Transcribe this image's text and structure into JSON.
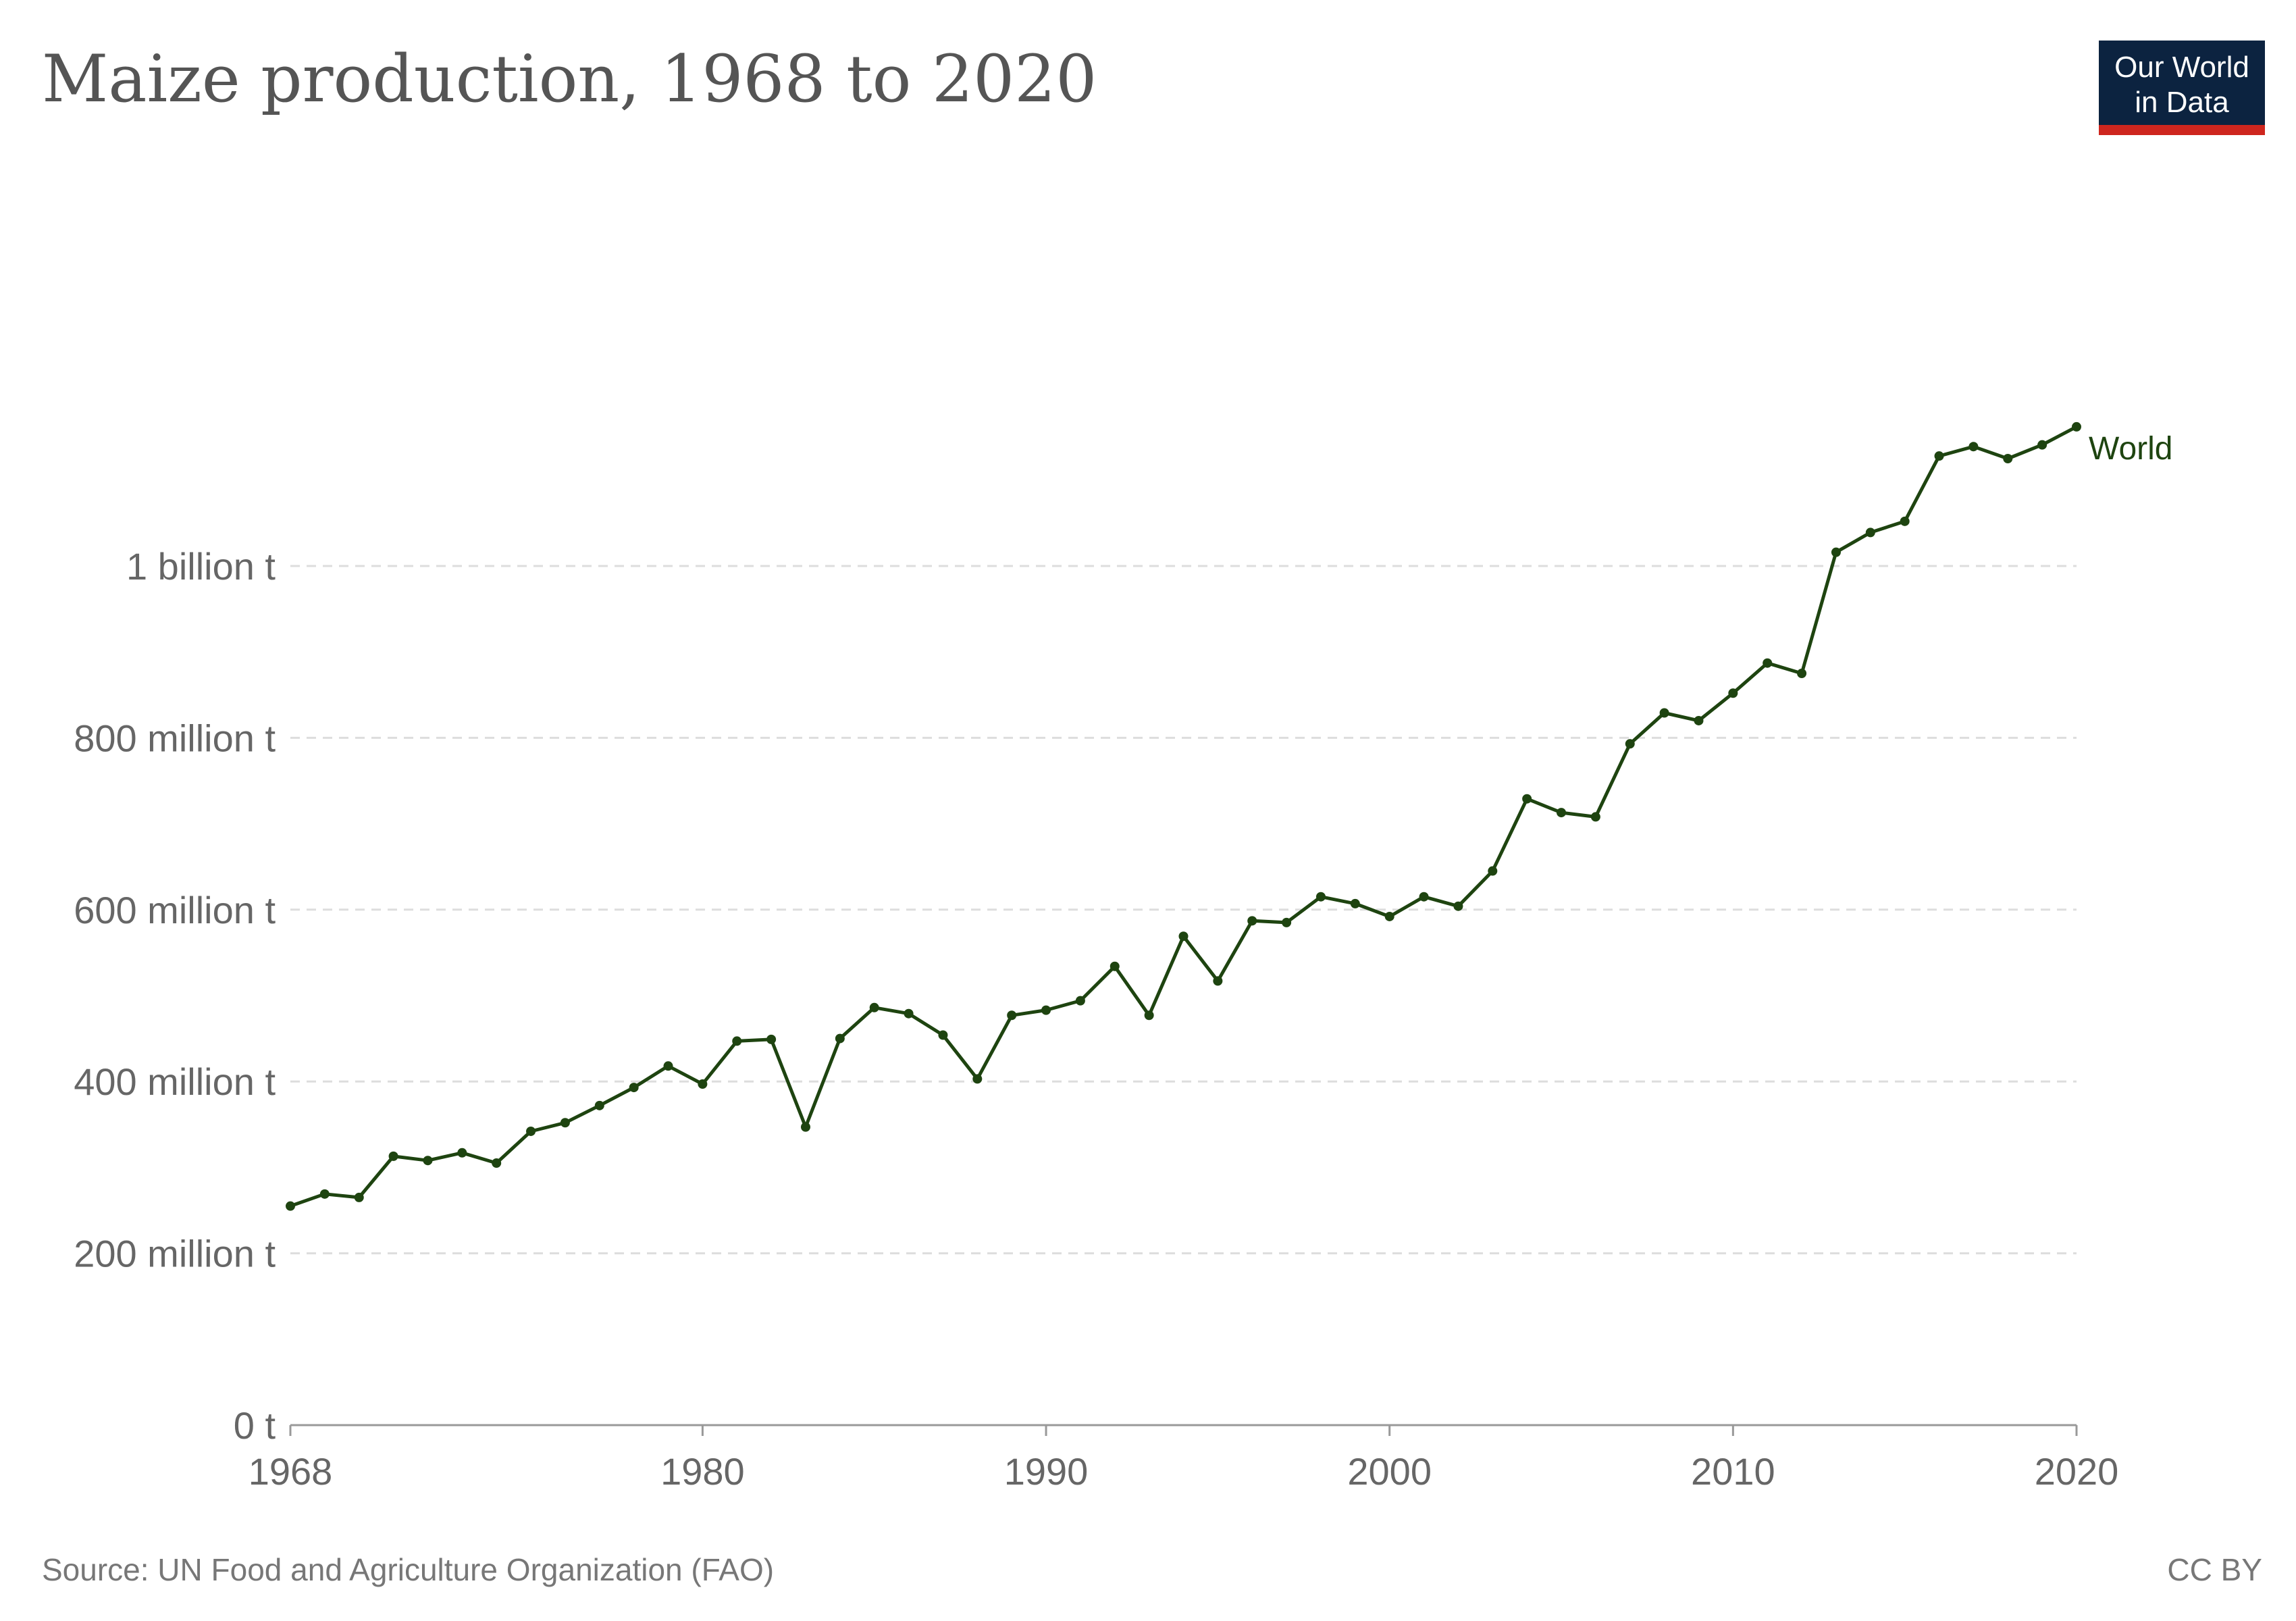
{
  "logo": {
    "line1": "Our World",
    "line2": "in Data",
    "bg": "#0c2340",
    "accent": "#ce261e"
  },
  "footer": {
    "source": "Source: UN Food and Agriculture Organization (FAO)",
    "license": "CC BY"
  },
  "chart_data": {
    "type": "line",
    "title": "Maize production, 1968 to 2020",
    "xlabel": "",
    "ylabel": "",
    "xlim": [
      1968,
      2020
    ],
    "ylim": [
      0,
      1200000000
    ],
    "x_ticks": [
      1968,
      1980,
      1990,
      2000,
      2010,
      2020
    ],
    "y_ticks": [
      {
        "value": 0,
        "label": "0 t"
      },
      {
        "value": 200000000,
        "label": "200 million t"
      },
      {
        "value": 400000000,
        "label": "400 million t"
      },
      {
        "value": 600000000,
        "label": "600 million t"
      },
      {
        "value": 800000000,
        "label": "800 million t"
      },
      {
        "value": 1000000000,
        "label": "1 billion t"
      }
    ],
    "grid": true,
    "line_color": "#1e4410",
    "series": [
      {
        "name": "World",
        "x": [
          1968,
          1969,
          1970,
          1971,
          1972,
          1973,
          1974,
          1975,
          1976,
          1977,
          1978,
          1979,
          1980,
          1981,
          1982,
          1983,
          1984,
          1985,
          1986,
          1987,
          1988,
          1989,
          1990,
          1991,
          1992,
          1993,
          1994,
          1995,
          1996,
          1997,
          1998,
          1999,
          2000,
          2001,
          2002,
          2003,
          2004,
          2005,
          2006,
          2007,
          2008,
          2009,
          2010,
          2011,
          2012,
          2013,
          2014,
          2015,
          2016,
          2017,
          2018,
          2019,
          2020
        ],
        "values": [
          255000000,
          269000000,
          265000000,
          313000000,
          308000000,
          317000000,
          305000000,
          342000000,
          352000000,
          372000000,
          393000000,
          418000000,
          397000000,
          447000000,
          449000000,
          347000000,
          450000000,
          486000000,
          479000000,
          454000000,
          403000000,
          477000000,
          483000000,
          494000000,
          534000000,
          477000000,
          569000000,
          517000000,
          587000000,
          585000000,
          615000000,
          607000000,
          592000000,
          615000000,
          604000000,
          645000000,
          729000000,
          713000000,
          708000000,
          793000000,
          829000000,
          820000000,
          852000000,
          887000000,
          875000000,
          1016000000,
          1039000000,
          1052000000,
          1128000000,
          1139000000,
          1125000000,
          1141000000,
          1162000000
        ]
      }
    ]
  }
}
